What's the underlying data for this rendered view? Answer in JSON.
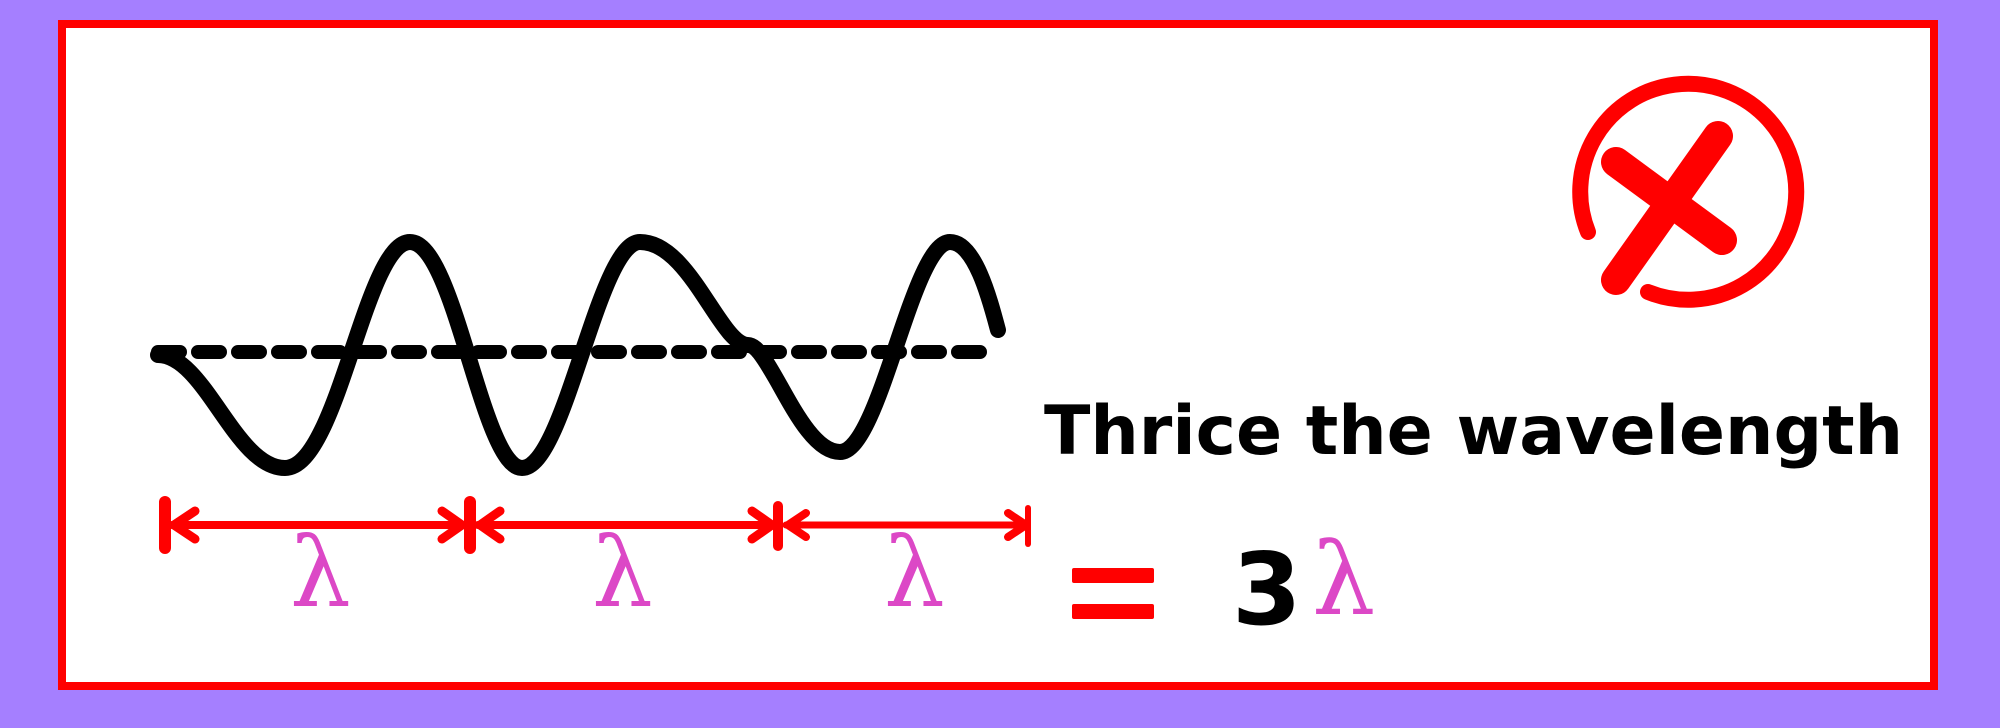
{
  "caption": "Thrice the wavelength",
  "segments": [
    {
      "symbol": "λ"
    },
    {
      "symbol": "λ"
    },
    {
      "symbol": "λ"
    }
  ],
  "result": {
    "equals": "=",
    "number": "3",
    "symbol": "λ"
  },
  "colors": {
    "background": "#a57fff",
    "frame": "#ff0000",
    "wave": "#000000",
    "arrows": "#ff0000",
    "lambda": "#dc48c6",
    "cross_icon": "#ff0000"
  },
  "icons": {
    "status": "red-cross-circle-icon"
  }
}
